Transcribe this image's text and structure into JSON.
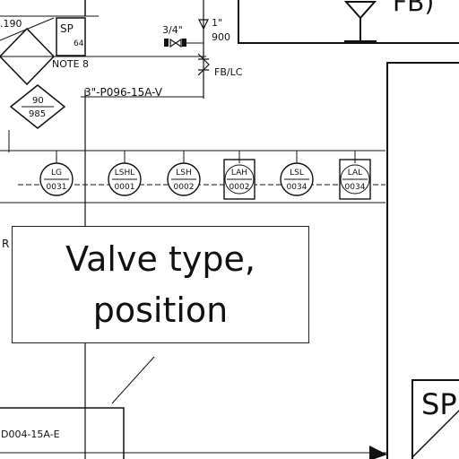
{
  "diagram": {
    "sheet_labels": {
      "top_left_fragment": ".190",
      "note": "NOTE 8",
      "valve_size": "3/4\"",
      "reducer_size": "1\"",
      "reducer_ref": "900",
      "fb_lc": "FB/LC",
      "fb_partial": "FB)",
      "pipe_main": "3\"-P096-15A-V",
      "pipe_bottom": "D004-15A-E",
      "side_marker": "R"
    },
    "diamonds": [
      {
        "top": "SP",
        "bottom": "64"
      },
      {
        "top": "90",
        "bottom": "985"
      }
    ],
    "instruments": [
      {
        "tag": "LG",
        "number": "0031",
        "shape": "circle"
      },
      {
        "tag": "LSHL",
        "number": "0001",
        "shape": "circle"
      },
      {
        "tag": "LSH",
        "number": "0002",
        "shape": "circle"
      },
      {
        "tag": "LAH",
        "number": "0002",
        "shape": "square"
      },
      {
        "tag": "LSL",
        "number": "0034",
        "shape": "circle"
      },
      {
        "tag": "LAL",
        "number": "0034",
        "shape": "square"
      }
    ],
    "sp_block": "SP",
    "callout": {
      "line1": "Valve type,",
      "line2": "position"
    }
  }
}
